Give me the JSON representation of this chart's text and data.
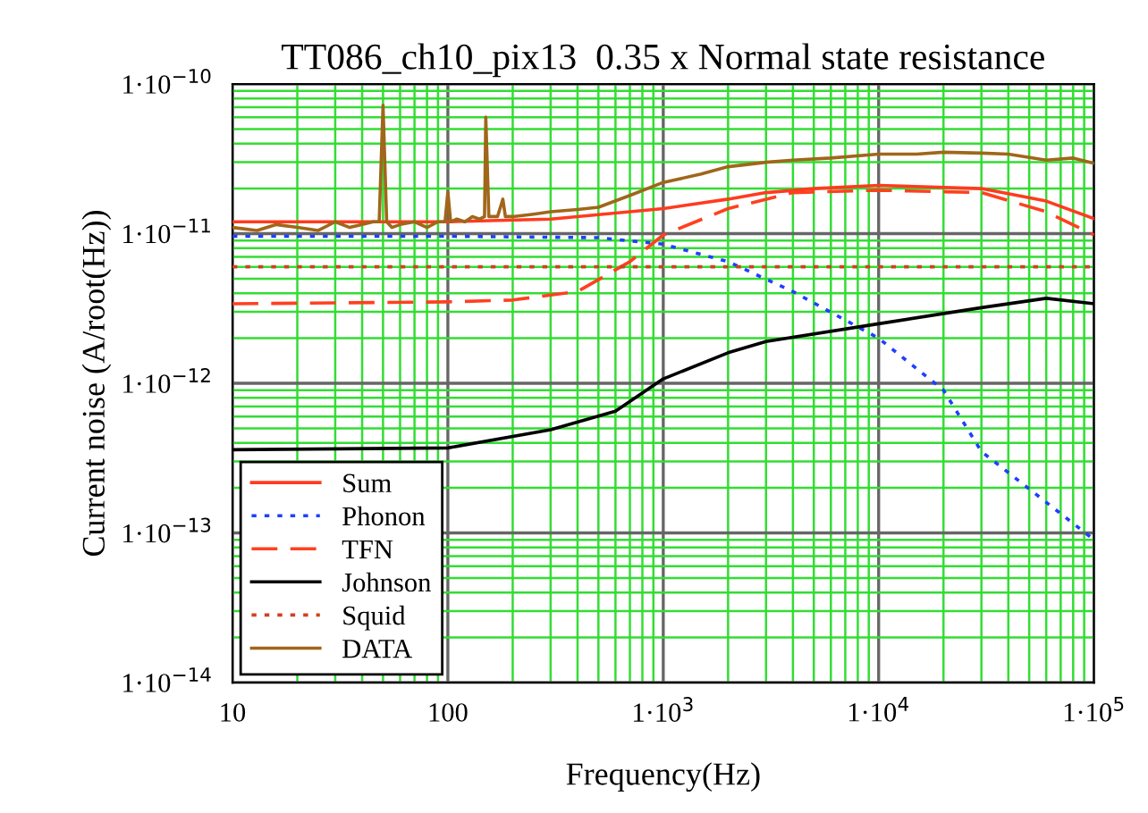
{
  "chart_data": {
    "type": "line",
    "title": "TT086_ch10_pix13  0.35 x Normal state resistance",
    "xlabel": "Frequency(Hz)",
    "ylabel": "Current noise (A/root(Hz))",
    "log": "xy",
    "grid": true,
    "legend": "bottom left",
    "xlim": [
      10,
      100000
    ],
    "ylim": [
      1e-14,
      1e-10
    ],
    "xticks": [
      10,
      {
        "value": 20,
        "label": null
      },
      {
        "value": 30,
        "label": null
      },
      {
        "value": 40,
        "label": null
      },
      {
        "value": 50,
        "label": null
      },
      {
        "value": 60,
        "label": null
      },
      {
        "value": 70,
        "label": null
      },
      {
        "value": 80,
        "label": null
      },
      {
        "value": 90,
        "label": null
      },
      100,
      {
        "value": 200,
        "label": null
      },
      {
        "value": 300,
        "label": null
      },
      {
        "value": 400,
        "label": null
      },
      {
        "value": 500,
        "label": null
      },
      {
        "value": 600,
        "label": null
      },
      {
        "value": 700,
        "label": null
      },
      {
        "value": 800,
        "label": null
      },
      {
        "value": 900,
        "label": null
      },
      {
        "value": 1000,
        "label": "1·10$^{3}$"
      },
      {
        "value": 2000,
        "label": null
      },
      {
        "value": 3000,
        "label": null
      },
      {
        "value": 4000,
        "label": null
      },
      {
        "value": 5000,
        "label": null
      },
      {
        "value": 6000,
        "label": null
      },
      {
        "value": 7000,
        "label": null
      },
      {
        "value": 8000,
        "label": null
      },
      {
        "value": 9000,
        "label": null
      },
      {
        "value": 10000,
        "label": "1·10$^{4}$"
      },
      {
        "value": 20000,
        "label": null
      },
      {
        "value": 30000,
        "label": null
      },
      {
        "value": 40000,
        "label": null
      },
      {
        "value": 50000,
        "label": null
      },
      {
        "value": 60000,
        "label": null
      },
      {
        "value": 70000,
        "label": null
      },
      {
        "value": 80000,
        "label": null
      },
      {
        "value": 90000,
        "label": null
      },
      {
        "value": 100000,
        "label": "1·10$^{5}$"
      }
    ],
    "yticks": [
      {
        "value": 1e-14,
        "label": "1·10$^{−14}$"
      },
      {
        "value": 2e-14,
        "label": null
      },
      {
        "value": 3e-14,
        "label": null
      },
      {
        "value": 4e-14,
        "label": null
      },
      {
        "value": 5e-14,
        "label": null
      },
      {
        "value": 6e-14,
        "label": null
      },
      {
        "value": 7e-14,
        "label": null
      },
      {
        "value": 8e-14,
        "label": null
      },
      {
        "value": 9e-14,
        "label": null
      },
      {
        "value": 1e-13,
        "label": "1·10$^{−13}$"
      },
      {
        "value": 2e-13,
        "label": null
      },
      {
        "value": 3e-13,
        "label": null
      },
      {
        "value": 4e-13,
        "label": null
      },
      {
        "value": 5e-13,
        "label": null
      },
      {
        "value": 6e-13,
        "label": null
      },
      {
        "value": 7e-13,
        "label": null
      },
      {
        "value": 8e-13,
        "label": null
      },
      {
        "value": 9e-13,
        "label": null
      },
      {
        "value": 1e-12,
        "label": "1·10$^{−12}$"
      },
      {
        "value": 2e-12,
        "label": null
      },
      {
        "value": 3e-12,
        "label": null
      },
      {
        "value": 4e-12,
        "label": null
      },
      {
        "value": 5e-12,
        "label": null
      },
      {
        "value": 6e-12,
        "label": null
      },
      {
        "value": 7e-12,
        "label": null
      },
      {
        "value": 8e-12,
        "label": null
      },
      {
        "value": 9e-12,
        "label": null
      },
      {
        "value": 1e-11,
        "label": "1·10$^{−11}$"
      },
      {
        "value": 2e-11,
        "label": null
      },
      {
        "value": 3e-11,
        "label": null
      },
      {
        "value": 4e-11,
        "label": null
      },
      {
        "value": 5e-11,
        "label": null
      },
      {
        "value": 6e-11,
        "label": null
      },
      {
        "value": 7e-11,
        "label": null
      },
      {
        "value": 8e-11,
        "label": null
      },
      {
        "value": 9e-11,
        "label": null
      },
      {
        "value": 1e-10,
        "label": "1·10$^{−10}$"
      }
    ],
    "series": [
      {
        "name": "Sum",
        "color": "#ff3b1f",
        "line_style": "solid",
        "x": [
          10,
          100,
          300,
          1000,
          2000,
          3000,
          5000,
          10000,
          30000,
          60000,
          100000
        ],
        "values": [
          1.2e-11,
          1.2e-11,
          1.25e-11,
          1.47e-11,
          1.7e-11,
          1.88e-11,
          2e-11,
          2.1e-11,
          2e-11,
          1.65e-11,
          1.26e-11
        ]
      },
      {
        "name": "Phonon",
        "color": "#1f3fff",
        "line_style": "dotted",
        "x": [
          10,
          100,
          500,
          1000,
          2000,
          4000,
          10000,
          20000,
          30000,
          100000
        ],
        "values": [
          9.6e-12,
          9.6e-12,
          9.4e-12,
          8.5e-12,
          6.5e-12,
          4.1e-12,
          2e-12,
          9e-13,
          3.5e-13,
          9e-14
        ]
      },
      {
        "name": "TFN",
        "color": "#ff4020",
        "line_style": "dashed",
        "x": [
          10,
          100,
          200,
          400,
          700,
          1000,
          2000,
          4000,
          10000,
          30000,
          60000,
          100000
        ],
        "values": [
          3.4e-12,
          3.5e-12,
          3.6e-12,
          4.1e-12,
          6.5e-12,
          9.8e-12,
          1.47e-11,
          1.88e-11,
          1.95e-11,
          1.88e-11,
          1.4e-11,
          9.8e-12
        ]
      },
      {
        "name": "Johnson",
        "color": "#000000",
        "line_style": "solid",
        "x": [
          10,
          100,
          300,
          600,
          1000,
          2000,
          3000,
          10000,
          30000,
          60000,
          100000
        ],
        "values": [
          3.6e-13,
          3.7e-13,
          4.9e-13,
          6.5e-13,
          1.07e-12,
          1.6e-12,
          1.9e-12,
          2.5e-12,
          3.2e-12,
          3.7e-12,
          3.4e-12
        ]
      },
      {
        "name": "Squid",
        "color": "#d04020",
        "line_style": "dotted",
        "x": [
          10,
          100000
        ],
        "values": [
          6e-12,
          6e-12
        ]
      },
      {
        "name": "DATA",
        "color": "#a0661a",
        "line_style": "solid",
        "x": [
          10,
          13,
          16,
          20,
          25,
          30,
          35,
          40,
          45,
          48,
          50,
          52,
          55,
          60,
          70,
          80,
          90,
          97,
          100,
          103,
          110,
          120,
          130,
          140,
          148,
          150,
          155,
          170,
          180,
          185,
          200,
          250,
          300,
          400,
          500,
          700,
          1000,
          1500,
          2000,
          3000,
          4000,
          6000,
          10000,
          15000,
          20000,
          30000,
          40000,
          60000,
          80000,
          100000
        ],
        "values": [
          1.1e-11,
          1.05e-11,
          1.15e-11,
          1.1e-11,
          1.05e-11,
          1.2e-11,
          1.1e-11,
          1.15e-11,
          1.2e-11,
          1.2e-11,
          7.2e-11,
          1.2e-11,
          1.1e-11,
          1.15e-11,
          1.2e-11,
          1.1e-11,
          1.2e-11,
          1.2e-11,
          1.9e-11,
          1.2e-11,
          1.25e-11,
          1.2e-11,
          1.3e-11,
          1.25e-11,
          1.3e-11,
          6e-11,
          1.3e-11,
          1.3e-11,
          1.7e-11,
          1.3e-11,
          1.3e-11,
          1.35e-11,
          1.4e-11,
          1.45e-11,
          1.5e-11,
          1.8e-11,
          2.2e-11,
          2.5e-11,
          2.8e-11,
          3e-11,
          3.1e-11,
          3.2e-11,
          3.4e-11,
          3.4e-11,
          3.5e-11,
          3.45e-11,
          3.4e-11,
          3.1e-11,
          3.2e-11,
          2.95e-11
        ]
      }
    ]
  }
}
